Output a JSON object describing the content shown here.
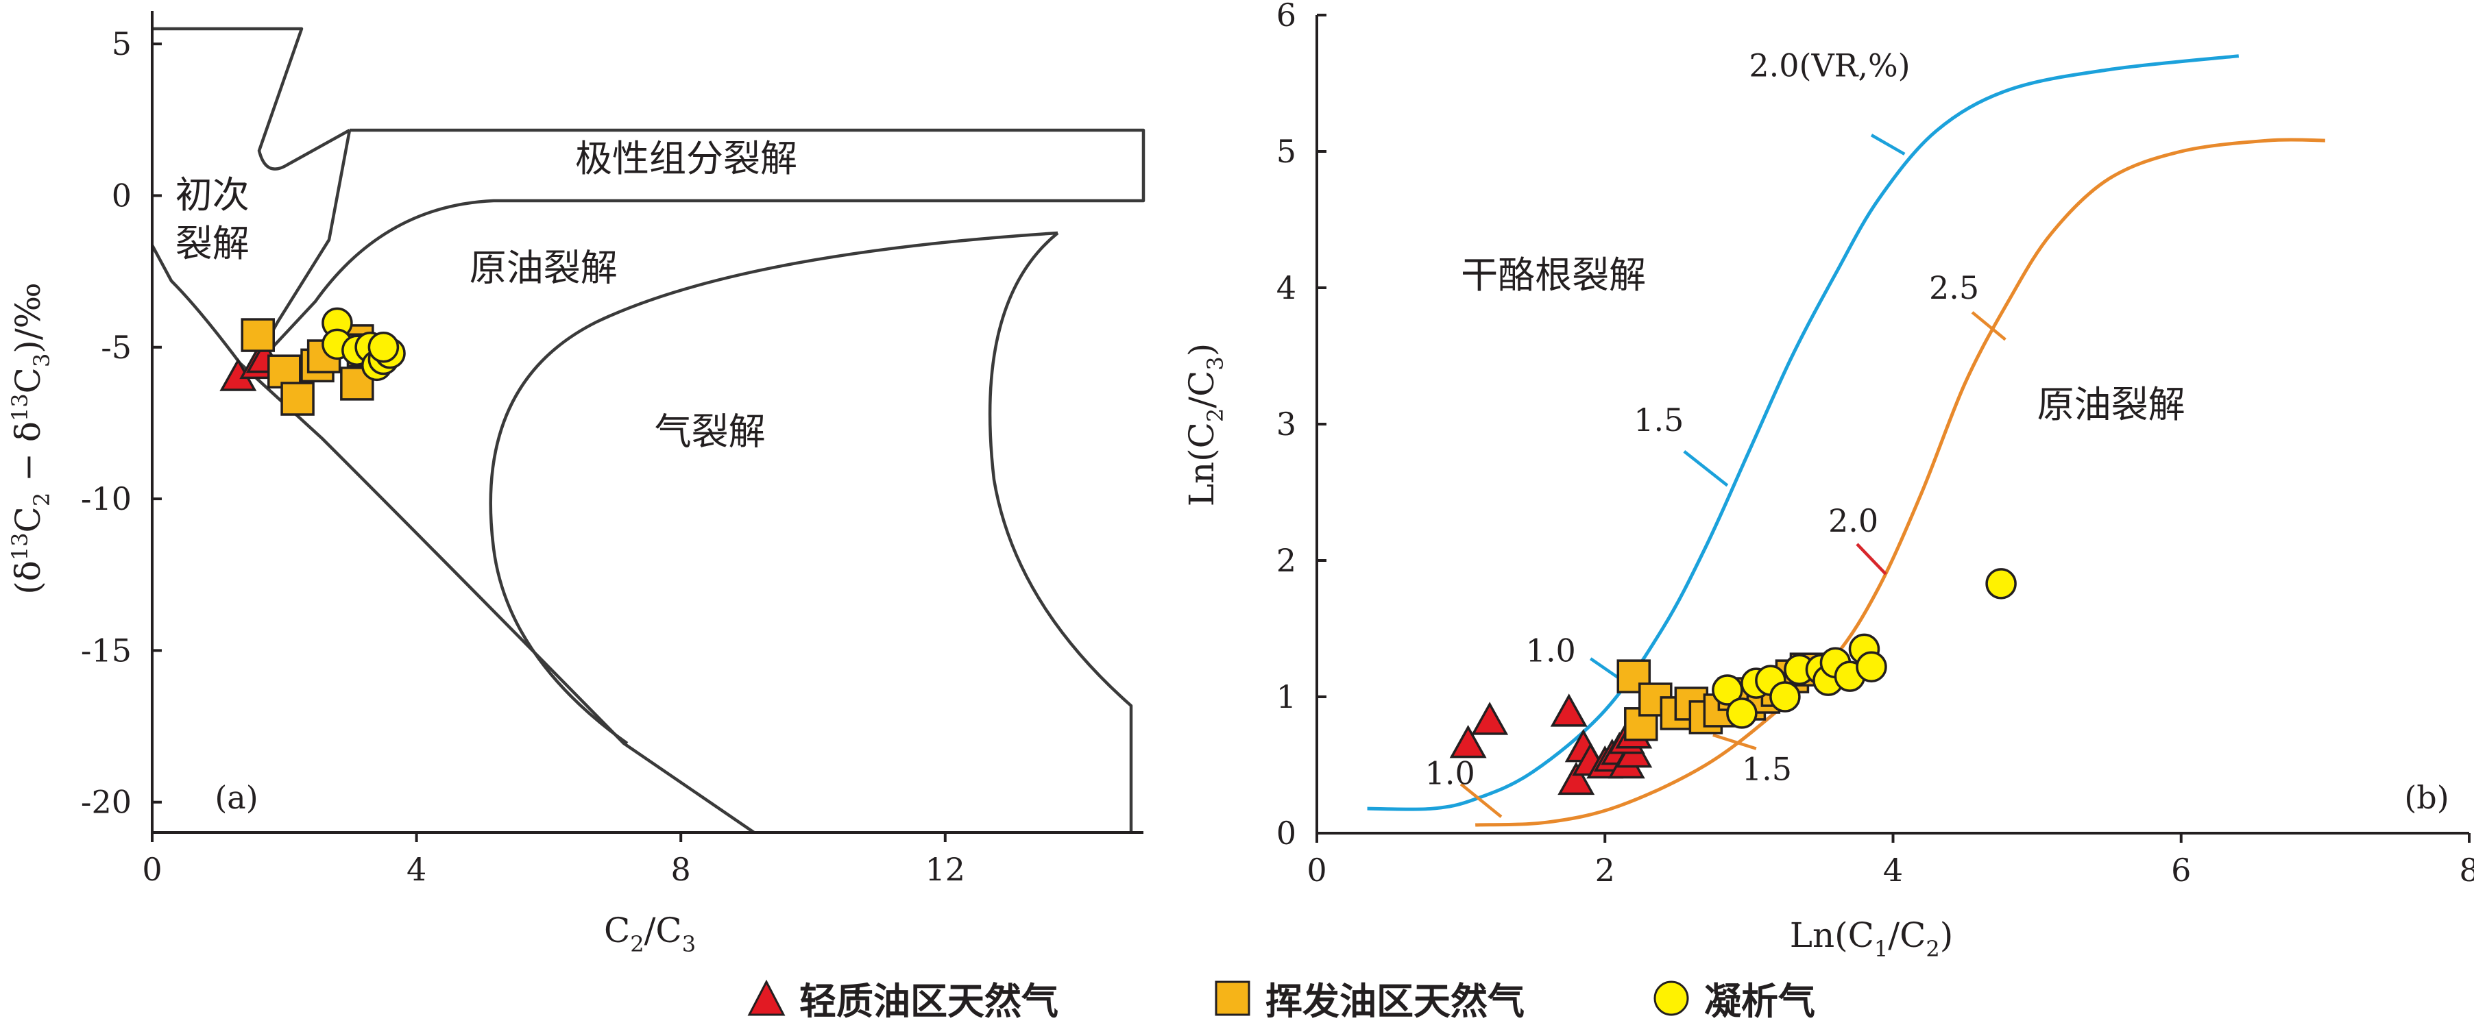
{
  "colors": {
    "axis": "#231f20",
    "field_line": "#3a3a3a",
    "vr_1_5_curve": "#1ba1db",
    "vr_2_0_curve": "#e8892b",
    "red_marker_line": "#d7262b",
    "triangle_fill": "#e21a23",
    "square_fill": "#f6b418",
    "circle_fill": "#fff200"
  },
  "legend": {
    "items": [
      {
        "label": "轻质油区天然气",
        "marker": "triangle",
        "color": "#e21a23"
      },
      {
        "label": "挥发油区天然气",
        "marker": "square",
        "color": "#f6b418"
      },
      {
        "label": "凝析气",
        "marker": "circle",
        "color": "#fff200"
      }
    ]
  },
  "chart_data": [
    {
      "type": "scatter",
      "panel_label": "(a)",
      "xlabel": "C2/C3",
      "ylabel": "(δ13C2 − δ13C3)/‰",
      "xlim": [
        0,
        15
      ],
      "ylim": [
        -21,
        5.5
      ],
      "xticks": [
        0,
        4,
        8,
        12
      ],
      "yticks": [
        5,
        0,
        -5,
        -10,
        -15,
        -20
      ],
      "grid": false,
      "region_labels": [
        {
          "text": "初次",
          "x": 0.35,
          "y": -0.4
        },
        {
          "text": "裂解",
          "x": 0.35,
          "y": -2.0
        },
        {
          "text": "极性组分裂解",
          "x": 6.4,
          "y": 0.8
        },
        {
          "text": "原油裂解",
          "x": 4.8,
          "y": -2.8
        },
        {
          "text": "气裂解",
          "x": 7.6,
          "y": -8.2
        }
      ],
      "series": [
        {
          "name": "轻质油区天然气",
          "marker": "triangle",
          "points": [
            [
              1.3,
              -6.0
            ],
            [
              1.6,
              -5.6
            ],
            [
              1.7,
              -5.4
            ]
          ]
        },
        {
          "name": "挥发油区天然气",
          "marker": "square",
          "points": [
            [
              1.6,
              -4.6
            ],
            [
              2.0,
              -5.8
            ],
            [
              2.2,
              -6.7
            ],
            [
              2.5,
              -5.6
            ],
            [
              2.6,
              -5.3
            ],
            [
              3.1,
              -4.8
            ],
            [
              3.1,
              -6.2
            ],
            [
              3.2,
              -5.1
            ]
          ]
        },
        {
          "name": "凝析气",
          "marker": "circle",
          "points": [
            [
              2.8,
              -4.2
            ],
            [
              2.8,
              -4.9
            ],
            [
              3.1,
              -5.1
            ],
            [
              3.3,
              -5.0
            ],
            [
              3.4,
              -5.6
            ],
            [
              3.5,
              -5.4
            ],
            [
              3.6,
              -5.2
            ],
            [
              3.5,
              -5.0
            ]
          ]
        }
      ]
    },
    {
      "type": "scatter",
      "panel_label": "(b)",
      "xlabel": "Ln(C1/C2)",
      "ylabel": "Ln(C2/C3)",
      "xlim": [
        0,
        8
      ],
      "ylim": [
        0,
        6
      ],
      "xticks": [
        0,
        2,
        4,
        6,
        8
      ],
      "yticks": [
        0,
        1,
        2,
        3,
        4,
        5,
        6
      ],
      "grid": false,
      "region_labels": [
        {
          "text": "干酪根裂解",
          "x": 1.0,
          "y": 4.0
        },
        {
          "text": "原油裂解",
          "x": 5.0,
          "y": 3.05
        }
      ],
      "curves": [
        {
          "color_key": "vr_1_5_curve",
          "points": [
            [
              0.35,
              0.18
            ],
            [
              0.8,
              0.18
            ],
            [
              1.1,
              0.25
            ],
            [
              1.5,
              0.45
            ],
            [
              2.0,
              0.9
            ],
            [
              2.4,
              1.5
            ],
            [
              2.7,
              2.1
            ],
            [
              3.0,
              2.8
            ],
            [
              3.3,
              3.5
            ],
            [
              3.6,
              4.1
            ],
            [
              3.9,
              4.65
            ],
            [
              4.3,
              5.15
            ],
            [
              4.8,
              5.45
            ],
            [
              5.5,
              5.6
            ],
            [
              6.4,
              5.7
            ]
          ]
        },
        {
          "color_key": "vr_2_0_curve",
          "points": [
            [
              1.1,
              0.06
            ],
            [
              1.6,
              0.08
            ],
            [
              2.1,
              0.2
            ],
            [
              2.7,
              0.5
            ],
            [
              3.2,
              0.9
            ],
            [
              3.6,
              1.3
            ],
            [
              3.9,
              1.8
            ],
            [
              4.2,
              2.5
            ],
            [
              4.5,
              3.3
            ],
            [
              4.8,
              3.9
            ],
            [
              5.1,
              4.4
            ],
            [
              5.5,
              4.8
            ],
            [
              6.0,
              5.0
            ],
            [
              6.6,
              5.08
            ],
            [
              7.0,
              5.08
            ]
          ]
        }
      ],
      "curve_labels": [
        {
          "text": "2.0(VR,%)",
          "x": 3.0,
          "y": 5.55,
          "tick_color_key": "vr_1_5_curve",
          "tick_from": [
            3.85,
            5.12
          ],
          "tick_to": [
            4.08,
            4.98
          ]
        },
        {
          "text": "1.5",
          "x": 2.2,
          "y": 2.95,
          "tick_color_key": "vr_1_5_curve",
          "tick_from": [
            2.55,
            2.8
          ],
          "tick_to": [
            2.85,
            2.55
          ]
        },
        {
          "text": "1.0",
          "x": 1.45,
          "y": 1.26,
          "tick_color_key": "vr_1_5_curve",
          "tick_from": [
            1.9,
            1.28
          ],
          "tick_to": [
            2.12,
            1.12
          ]
        },
        {
          "text": "2.5",
          "x": 4.25,
          "y": 3.92,
          "tick_color_key": "vr_2_0_curve",
          "tick_from": [
            4.55,
            3.82
          ],
          "tick_to": [
            4.78,
            3.62
          ]
        },
        {
          "text": "2.0",
          "x": 3.55,
          "y": 2.21,
          "tick_color_key": "red_marker_line",
          "tick_from": [
            3.75,
            2.12
          ],
          "tick_to": [
            3.95,
            1.9
          ]
        },
        {
          "text": "1.0",
          "x": 0.75,
          "y": 0.36,
          "tick_color_key": "vr_2_0_curve",
          "tick_from": [
            1.0,
            0.36
          ],
          "tick_to": [
            1.28,
            0.12
          ]
        },
        {
          "text": "1.5",
          "x": 2.95,
          "y": 0.39,
          "tick_color_key": "vr_2_0_curve",
          "tick_from": [
            2.75,
            0.72
          ],
          "tick_to": [
            3.05,
            0.62
          ]
        }
      ],
      "series": [
        {
          "name": "轻质油区天然气",
          "marker": "triangle",
          "points": [
            [
              1.05,
              0.65
            ],
            [
              1.2,
              0.82
            ],
            [
              1.75,
              0.88
            ],
            [
              1.8,
              0.38
            ],
            [
              1.85,
              0.62
            ],
            [
              1.9,
              0.52
            ],
            [
              2.0,
              0.5
            ],
            [
              2.05,
              0.55
            ],
            [
              2.1,
              0.6
            ],
            [
              2.15,
              0.5
            ],
            [
              2.2,
              0.58
            ],
            [
              2.15,
              0.68
            ],
            [
              2.2,
              0.72
            ]
          ]
        },
        {
          "name": "挥发油区天然气",
          "marker": "square",
          "points": [
            [
              2.2,
              1.15
            ],
            [
              2.25,
              0.8
            ],
            [
              2.35,
              0.98
            ],
            [
              2.5,
              0.88
            ],
            [
              2.6,
              0.95
            ],
            [
              2.7,
              0.85
            ],
            [
              2.8,
              0.9
            ],
            [
              2.9,
              1.02
            ],
            [
              3.0,
              0.95
            ],
            [
              3.1,
              1.0
            ],
            [
              3.2,
              1.05
            ],
            [
              3.3,
              1.15
            ],
            [
              3.4,
              1.2
            ]
          ]
        },
        {
          "name": "凝析气",
          "marker": "circle",
          "points": [
            [
              2.85,
              1.05
            ],
            [
              2.95,
              0.88
            ],
            [
              3.05,
              1.1
            ],
            [
              3.15,
              1.12
            ],
            [
              3.25,
              1.0
            ],
            [
              3.35,
              1.2
            ],
            [
              3.5,
              1.2
            ],
            [
              3.55,
              1.12
            ],
            [
              3.6,
              1.25
            ],
            [
              3.7,
              1.15
            ],
            [
              3.8,
              1.35
            ],
            [
              3.85,
              1.22
            ],
            [
              4.75,
              1.83
            ]
          ]
        }
      ]
    }
  ]
}
